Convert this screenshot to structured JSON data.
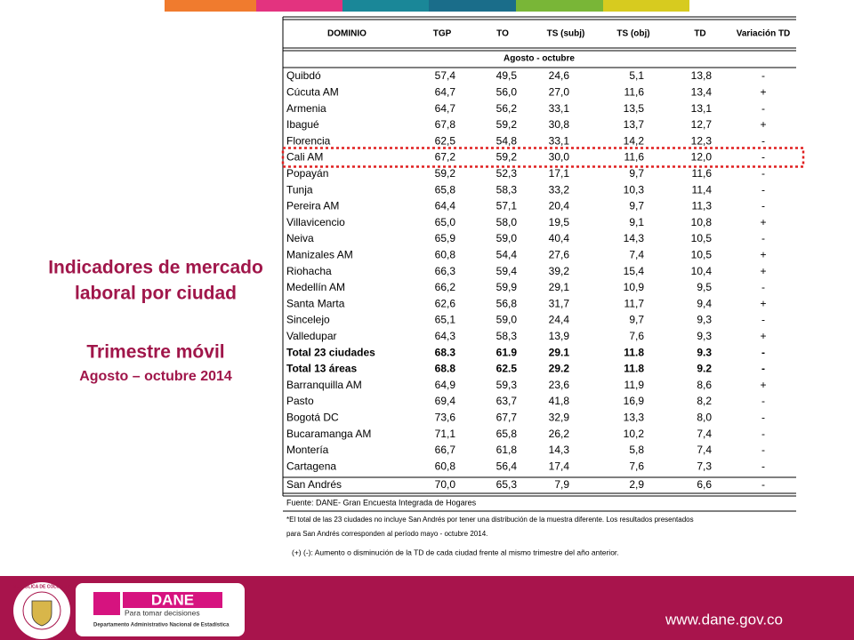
{
  "title": {
    "lines": [
      "Indicadores de mercado",
      "laboral por ciudad"
    ],
    "period_label": "Trimestre móvil",
    "period": "Agosto – octubre 2014"
  },
  "table": {
    "header": [
      "DOMINIO",
      "TGP",
      "TO",
      "TS (subj)",
      "TS (obj)",
      "TD",
      "Variación TD"
    ],
    "subheader": "Agosto - octubre",
    "rows": [
      {
        "cells": [
          "Quibdó",
          "57,4",
          "49,5",
          "24,6",
          "5,1",
          "13,8",
          "-"
        ]
      },
      {
        "cells": [
          "Cúcuta AM",
          "64,7",
          "56,0",
          "27,0",
          "11,6",
          "13,4",
          "+"
        ]
      },
      {
        "cells": [
          "Armenia",
          "64,7",
          "56,2",
          "33,1",
          "13,5",
          "13,1",
          "-"
        ]
      },
      {
        "cells": [
          "Ibagué",
          "67,8",
          "59,2",
          "30,8",
          "13,7",
          "12,7",
          "+"
        ]
      },
      {
        "cells": [
          "Florencia",
          "62,5",
          "54,8",
          "33,1",
          "14,2",
          "12,3",
          "-"
        ]
      },
      {
        "cells": [
          "Cali AM",
          "67,2",
          "59,2",
          "30,0",
          "11,6",
          "12,0",
          "-"
        ],
        "highlighted": true
      },
      {
        "cells": [
          "Popayán",
          "59,2",
          "52,3",
          "17,1",
          "9,7",
          "11,6",
          "-"
        ]
      },
      {
        "cells": [
          "Tunja",
          "65,8",
          "58,3",
          "33,2",
          "10,3",
          "11,4",
          "-"
        ]
      },
      {
        "cells": [
          "Pereira AM",
          "64,4",
          "57,1",
          "20,4",
          "9,7",
          "11,3",
          "-"
        ]
      },
      {
        "cells": [
          "Villavicencio",
          "65,0",
          "58,0",
          "19,5",
          "9,1",
          "10,8",
          "+"
        ]
      },
      {
        "cells": [
          "Neiva",
          "65,9",
          "59,0",
          "40,4",
          "14,3",
          "10,5",
          "-"
        ]
      },
      {
        "cells": [
          "Manizales AM",
          "60,8",
          "54,4",
          "27,6",
          "7,4",
          "10,5",
          "+"
        ]
      },
      {
        "cells": [
          "Riohacha",
          "66,3",
          "59,4",
          "39,2",
          "15,4",
          "10,4",
          "+"
        ]
      },
      {
        "cells": [
          "Medellín AM",
          "66,2",
          "59,9",
          "29,1",
          "10,9",
          "9,5",
          "-"
        ]
      },
      {
        "cells": [
          "Santa Marta",
          "62,6",
          "56,8",
          "31,7",
          "11,7",
          "9,4",
          "+"
        ]
      },
      {
        "cells": [
          "Sincelejo",
          "65,1",
          "59,0",
          "24,4",
          "9,7",
          "9,3",
          "-"
        ]
      },
      {
        "cells": [
          "Valledupar",
          "64,3",
          "58,3",
          "13,9",
          "7,6",
          "9,3",
          "+"
        ]
      },
      {
        "cells": [
          "Total 23 ciudades",
          "68.3",
          "61.9",
          "29.1",
          "11.8",
          "9.3",
          "-"
        ],
        "bold": true
      },
      {
        "cells": [
          "Total 13 áreas",
          "68.8",
          "62.5",
          "29.2",
          "11.8",
          "9.2",
          "-"
        ],
        "bold": true
      },
      {
        "cells": [
          "Barranquilla AM",
          "64,9",
          "59,3",
          "23,6",
          "11,9",
          "8,6",
          "+"
        ]
      },
      {
        "cells": [
          "Pasto",
          "69,4",
          "63,7",
          "41,8",
          "16,9",
          "8,2",
          "-"
        ]
      },
      {
        "cells": [
          "Bogotá DC",
          "73,6",
          "67,7",
          "32,9",
          "13,3",
          "8,0",
          "-"
        ]
      },
      {
        "cells": [
          "Bucaramanga AM",
          "71,1",
          "65,8",
          "26,2",
          "10,2",
          "7,4",
          "-"
        ]
      },
      {
        "cells": [
          "Montería",
          "66,7",
          "61,8",
          "14,3",
          "5,8",
          "7,4",
          "-"
        ]
      },
      {
        "cells": [
          "Cartagena",
          "60,8",
          "56,4",
          "17,4",
          "7,6",
          "7,3",
          "-"
        ]
      },
      {
        "cells": [
          "San Andrés",
          "70,0",
          "65,3",
          "7,9",
          "2,9",
          "6,6",
          "-"
        ]
      }
    ]
  },
  "notes": {
    "source": "Fuente: DANE- Gran Encuesta Integrada de Hogares",
    "footnote": [
      "*El total de las 23 ciudades no incluye San Andrés por tener una distribución de la muestra diferente. Los resultados presentados",
      "para San Andrés corresponden al período mayo - octubre 2014."
    ],
    "legend": "(+) (-): Aumento o disminución de la TD de cada ciudad frente al mismo trimestre del año anterior."
  },
  "footer": {
    "seal": "REPÚBLICA DE COLOMBIA",
    "logo_name": "DANE",
    "logo_slogan": "Para tomar decisiones",
    "logo_fullname": "Departamento Administrativo Nacional de Estadística",
    "website": "www.dane.gov.co"
  }
}
